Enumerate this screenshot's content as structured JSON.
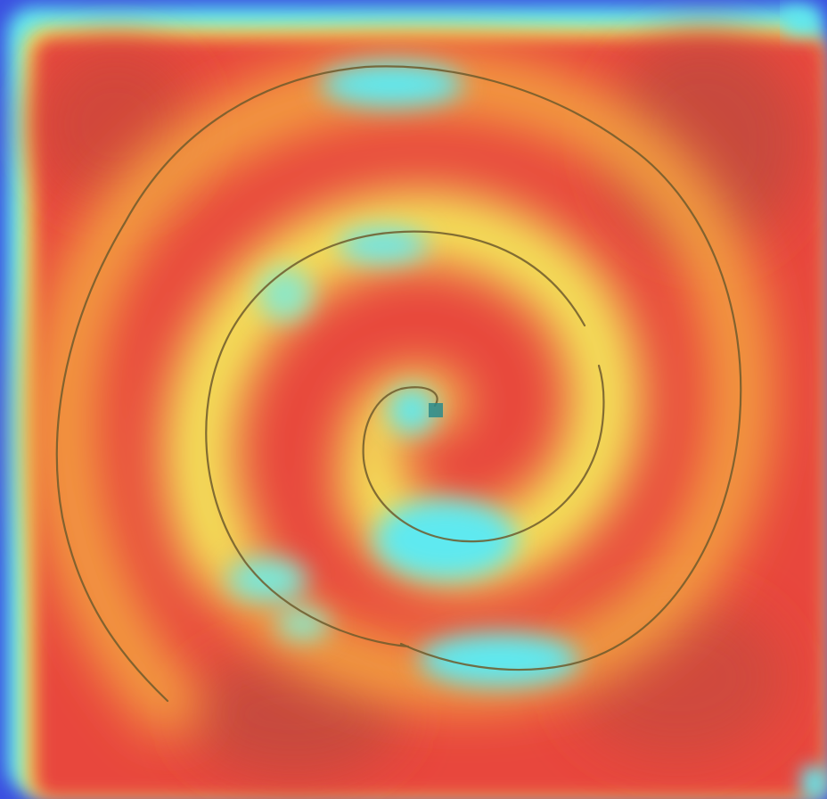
{
  "image": {
    "subject": "spiral-drawing-heatmap",
    "colormap": "jet",
    "colors": {
      "background_blue": "#3b4fe0",
      "cyan": "#5ee9f0",
      "yellow": "#f4ea5a",
      "orange": "#f3a040",
      "red": "#e8473c",
      "dark_red": "#c84a3c",
      "stroke": "#6e5a2c"
    },
    "marker_color": "#2a8a8a"
  }
}
